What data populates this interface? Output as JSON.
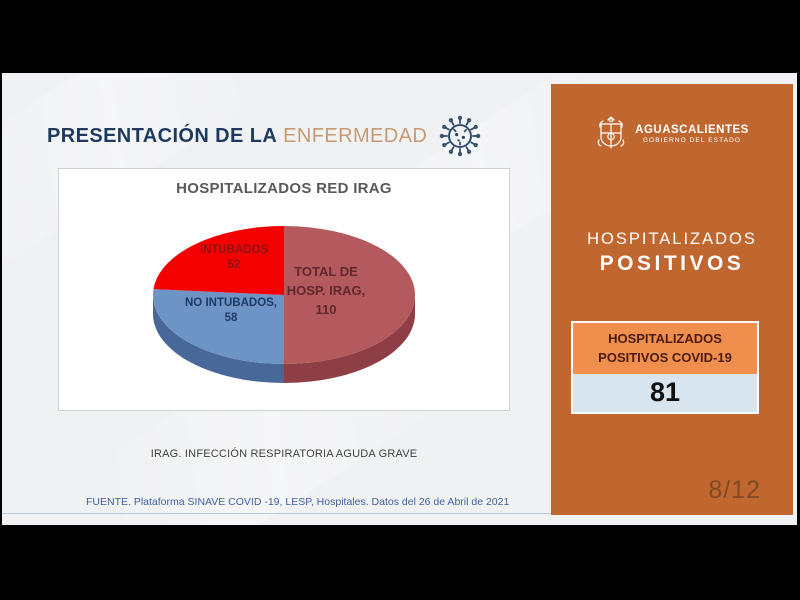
{
  "colors": {
    "title_navy": "#1e3a5f",
    "title_tan": "#c79b72",
    "panel_orange": "#c0672f",
    "card_header_orange": "#f08e4d",
    "card_value_bg": "#d8e4ee",
    "source_blue": "#44619c"
  },
  "slide": {
    "title_prefix": "PRESENTACIÓN DE LA",
    "title_suffix": "ENFERMEDAD",
    "note": "IRAG. INFECCIÓN RESPIRATORIA AGUDA GRAVE",
    "source": "FUENTE. Plataforma SINAVE COVID -19, LESP, Hospitales. Datos del 26 de Abril de 2021"
  },
  "chart_data": {
    "type": "pie",
    "style": "3d-pie",
    "title": "HOSPITALIZADOS RED IRAG",
    "total": 220,
    "direction": "clockwise",
    "start_angle_deg": 0,
    "legend": "none",
    "slices": [
      {
        "name": "TOTAL DE HOSP. IRAG",
        "value": 110,
        "color": "#b4595d",
        "side_color": "#8d3f45",
        "label_color": "#5f282c",
        "label_lines": [
          "TOTAL DE",
          "HOSP. IRAG,",
          "110"
        ]
      },
      {
        "name": "NO INTUBADOS",
        "value": 58,
        "color": "#6e94c6",
        "side_color": "#48689a",
        "label_color": "#1e3a66",
        "label_lines": [
          "NO INTUBADOS,",
          "58"
        ]
      },
      {
        "name": "INTUBADOS",
        "value": 52,
        "color": "#f40000",
        "side_color": "#b00000",
        "label_color": "#8c1417",
        "label_lines": [
          "INTUBADOS",
          "52"
        ]
      }
    ]
  },
  "sidebar": {
    "logo_org": "AGUASCALIENTES",
    "logo_sub": "GOBIERNO DEL ESTADO",
    "heading_line1": "HOSPITALIZADOS",
    "heading_line2": "POSITIVOS",
    "card_label_line1": "HOSPITALIZADOS",
    "card_label_line2": "POSITIVOS COVID-19",
    "card_value": "81",
    "page_indicator": "8/12"
  }
}
